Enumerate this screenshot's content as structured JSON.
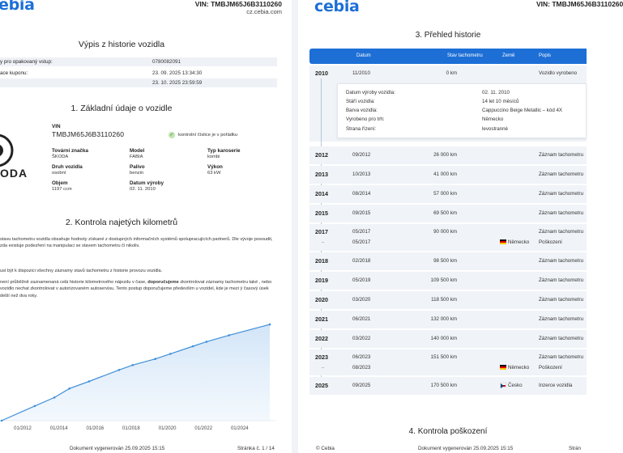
{
  "left": {
    "header": {
      "logo": "ebia",
      "vin": "VIN: TMBJM65J6B3110260",
      "site": "cz.cebia.com"
    },
    "title": "Výpis z historie vozidla",
    "info_rows": [
      {
        "label": "y pro opakovaný vstup:",
        "value": "0780082091"
      },
      {
        "label": "ace kuponu:",
        "value": "23. 09. 2025 13:34:30"
      },
      {
        "label": "",
        "value": "23. 10. 2025 23:59:59"
      }
    ],
    "section1": {
      "title": "1. Základní údaje o vozidle",
      "vin_label": "VIN",
      "vin_value": "TMBJM65J6B3110260",
      "check_text": "kontrolní číslice je v pořádku",
      "brand_text": "ODA",
      "fields": [
        {
          "label": "Tovární značka",
          "value": "ŠKODA"
        },
        {
          "label": "Model",
          "value": "FABIA"
        },
        {
          "label": "Typ karoserie",
          "value": "kombi"
        },
        {
          "label": "Druh vozidla",
          "value": "osobní"
        },
        {
          "label": "Palivo",
          "value": "benzin"
        },
        {
          "label": "Výkon",
          "value": "63 kW"
        },
        {
          "label": "Objem",
          "value": "1197 ccm"
        },
        {
          "label": "Datum výroby",
          "value": "02. 11. 2010"
        }
      ]
    },
    "section2": {
      "title": "2. Kontrola najetých kilometrů",
      "p1": "stavu tachometru vozidla obsahuje hodnoty získané z dostupných informačních systémů spolupracujících partnerů. Dle vývoje posoudit, zda existuje podezření na manipulaci se stavem tachometru či nikoliv.",
      "p2": "usí být k dispozici všechny záznamy stavů tachometru z historie provozu vozidla.",
      "p3_pre": " není průběžně zaznamenaná celá historie kilometrového nájezdu v čase, ",
      "p3_bold": "doporučujeme",
      "p3_post": " zkontrolovat záznamy tachometru také , nebo vozidlo nechat zkontrolovat v autorizovaném autoservisu. Tento postup doporučujeme především u vozidel, kde je mezi ý časový úsek delší než dva roky."
    },
    "chart_data": {
      "type": "area",
      "title": "",
      "xlabel": "",
      "ylabel": "",
      "x": [
        "11/2010",
        "09/2012",
        "10/2013",
        "08/2014",
        "09/2015",
        "05/2017",
        "02/2018",
        "05/2019",
        "03/2020",
        "06/2021",
        "03/2022",
        "06/2023",
        "09/2025"
      ],
      "values": [
        0,
        26000,
        41000,
        57000,
        69500,
        90000,
        98500,
        109500,
        118500,
        132000,
        140000,
        151500,
        170500
      ],
      "xticks": [
        "01/2012",
        "01/2014",
        "01/2016",
        "01/2018",
        "01/2020",
        "01/2022",
        "01/2024"
      ],
      "xlim": [
        "2010-11",
        "2025-09"
      ],
      "ylim": [
        0,
        175000
      ],
      "grid": false,
      "color": "#3f8fd8"
    },
    "footer": {
      "generated": "Dokument vygenerován 25.09.2025 15:15",
      "page": "Stránka č. 1 / 14"
    }
  },
  "right": {
    "header": {
      "logo": "cebia",
      "vin": "VIN: TMBJM65J6B3110260"
    },
    "section3_title": "3. Přehled historie",
    "table_headers": {
      "date": "Datum",
      "odometer": "Stav tachometru",
      "country": "Země",
      "desc": "Popis"
    },
    "first_entry": {
      "year": "2010",
      "date": "11/2010",
      "km": "0 km",
      "desc": "Vozidlo vyrobeno"
    },
    "details": [
      {
        "label": "Datum výroby vozidla:",
        "value": "02. 11. 2010"
      },
      {
        "label": "Stáří vozidla:",
        "value": "14 let 10 měsíců"
      },
      {
        "label": "Barva vozidla:",
        "value": "Cappuccino Beige Metallic – kód 4X"
      },
      {
        "label": "Vyrobeno pro trh:",
        "value": "Německo"
      },
      {
        "label": "Strana řízení:",
        "value": "levostranné"
      }
    ],
    "rows": [
      {
        "year": "2012",
        "date": "09/2012",
        "km": "26 000 km",
        "country": "",
        "desc": "Záznam tachometru"
      },
      {
        "year": "2013",
        "date": "10/2013",
        "km": "41 000 km",
        "country": "",
        "desc": "Záznam tachometru"
      },
      {
        "year": "2014",
        "date": "08/2014",
        "km": "57 000 km",
        "country": "",
        "desc": "Záznam tachometru"
      },
      {
        "year": "2015",
        "date": "09/2015",
        "km": "69 500 km",
        "country": "",
        "desc": "Záznam tachometru"
      },
      {
        "year": "2017",
        "date": "05/2017",
        "km": "90 000 km",
        "country": "",
        "desc": "Záznam tachometru"
      },
      {
        "year": "",
        "date": "05/2017",
        "km": "",
        "country": "Německo",
        "desc": "Poškození"
      },
      {
        "year": "2018",
        "date": "02/2018",
        "km": "98 500 km",
        "country": "",
        "desc": "Záznam tachometru"
      },
      {
        "year": "2019",
        "date": "05/2019",
        "km": "109 500 km",
        "country": "",
        "desc": "Záznam tachometru"
      },
      {
        "year": "2020",
        "date": "03/2020",
        "km": "118 500 km",
        "country": "",
        "desc": "Záznam tachometru"
      },
      {
        "year": "2021",
        "date": "06/2021",
        "km": "132 000 km",
        "country": "",
        "desc": "Záznam tachometru"
      },
      {
        "year": "2022",
        "date": "03/2022",
        "km": "140 000 km",
        "country": "",
        "desc": "Záznam tachometru"
      },
      {
        "year": "2023",
        "date": "06/2023",
        "km": "151 500 km",
        "country": "",
        "desc": "Záznam tachometru"
      },
      {
        "year": "",
        "date": "08/2023",
        "km": "",
        "country": "Německo",
        "desc": "Poškození"
      },
      {
        "year": "2025",
        "date": "09/2025",
        "km": "170 500 km",
        "country": "Česko",
        "desc": "Inzerce vozidla"
      }
    ],
    "section4_title": "4. Kontrola poškození",
    "footer": {
      "copyright": "© Cebia",
      "generated": "Dokument vygenerován 25.09.2025 15:15",
      "page": "Strán"
    }
  },
  "colors": {
    "accent": "#1d6fd6",
    "chart_line": "#3f8fd8",
    "band": "#f0f3f7"
  }
}
